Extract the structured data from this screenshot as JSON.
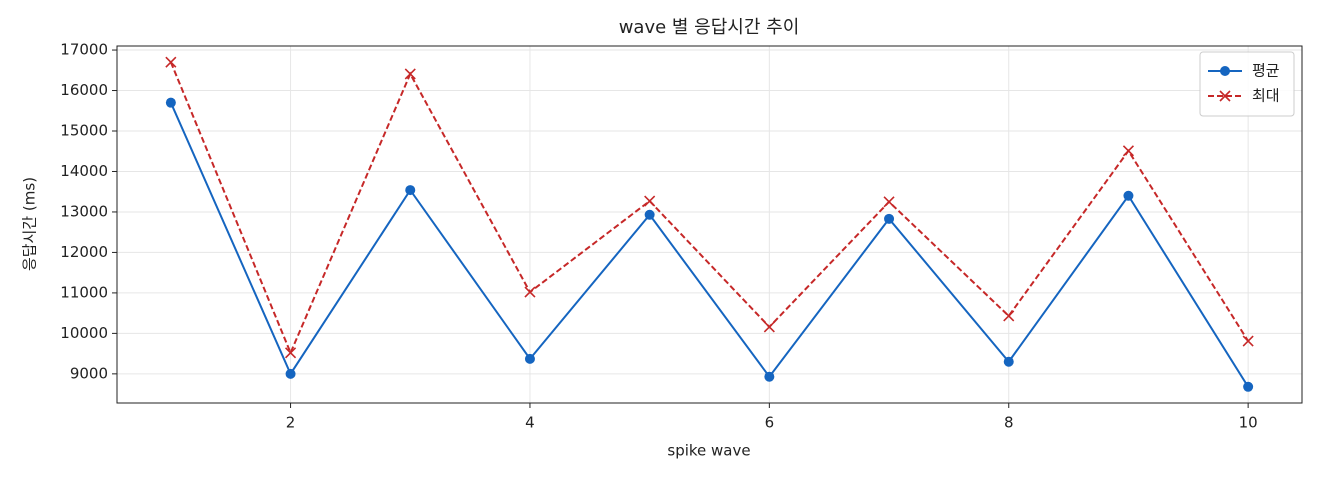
{
  "chart_data": {
    "type": "line",
    "title": "wave 별 응답시간 추이",
    "xlabel": "spike wave",
    "ylabel": "응답시간 (ms)",
    "x": [
      1,
      2,
      3,
      4,
      5,
      6,
      7,
      8,
      9,
      10
    ],
    "series": [
      {
        "name": "평균",
        "color": "#1565c0",
        "marker": "o",
        "linestyle": "solid",
        "values": [
          15700,
          9000,
          13540,
          9370,
          12930,
          8930,
          12830,
          9300,
          13400,
          8680
        ]
      },
      {
        "name": "최대",
        "color": "#c62828",
        "marker": "x",
        "linestyle": "dashed",
        "values": [
          16700,
          9520,
          16410,
          11020,
          13270,
          10160,
          13250,
          10430,
          14510,
          9810
        ]
      }
    ],
    "xlim": [
      0.55,
      10.45
    ],
    "xticks": [
      2,
      4,
      6,
      8,
      10
    ],
    "ylim": [
      8280,
      17100
    ],
    "yticks": [
      9000,
      10000,
      11000,
      12000,
      13000,
      14000,
      15000,
      16000,
      17000
    ],
    "grid": true,
    "legend": "upper right"
  }
}
